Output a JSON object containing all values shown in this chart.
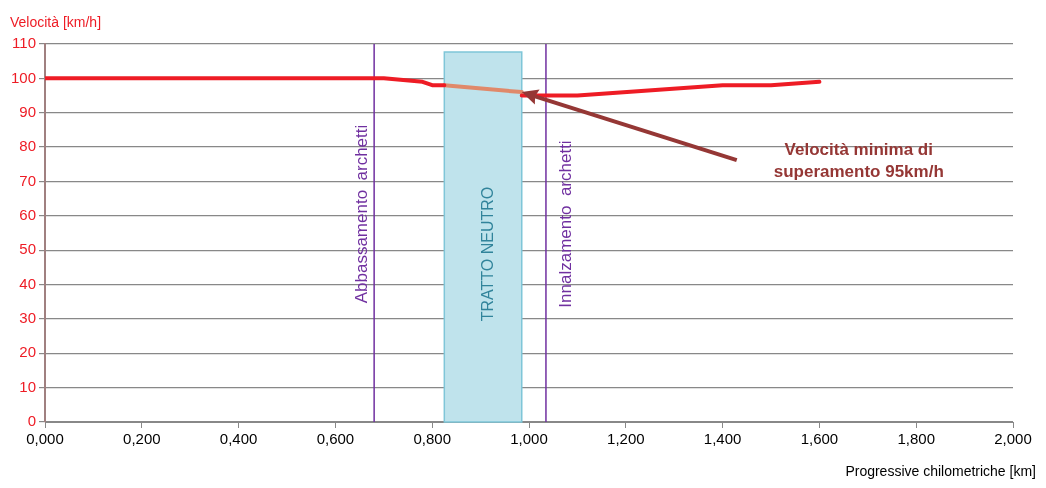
{
  "chart_data": {
    "type": "line",
    "xlabel": "Progressive chilometriche [km]",
    "ylabel": "Velocità [km/h]",
    "series": [
      {
        "color": "#ee1c25",
        "x": [
          0,
          0.7,
          0.78,
          0.8,
          0.825,
          null,
          0.985,
          1.1,
          1.4,
          1.5,
          1.6
        ],
        "values": [
          100,
          100,
          99,
          98,
          98,
          null,
          95,
          95,
          98,
          98,
          99
        ]
      },
      {
        "color": "#e0896a",
        "x": [
          0.825,
          0.985
        ],
        "values": [
          98,
          96
        ]
      }
    ],
    "xlim": [
      0,
      2
    ],
    "xticks": [
      {
        "value": 0,
        "label": "0,000"
      },
      {
        "value": 0.2,
        "label": "0,200"
      },
      {
        "value": 0.4,
        "label": "0,400"
      },
      {
        "value": 0.6,
        "label": "0,600"
      },
      {
        "value": 0.8,
        "label": "0,800"
      },
      {
        "value": 1,
        "label": "1,000"
      },
      {
        "value": 1.2,
        "label": "1,200"
      },
      {
        "value": 1.4,
        "label": "1,400"
      },
      {
        "value": 1.6,
        "label": "1,600"
      },
      {
        "value": 1.8,
        "label": "1,800"
      },
      {
        "value": 2,
        "label": "2,000"
      }
    ],
    "ylim": [
      0,
      110
    ],
    "yticks": [
      0,
      10,
      20,
      30,
      40,
      50,
      60,
      70,
      80,
      90,
      100,
      110
    ],
    "grid": "y",
    "legend": false,
    "marker": "none",
    "line_style": "solid",
    "ref_lines": [
      {
        "axis": "x",
        "value": 0.68,
        "label": "Abbassamento  archetti",
        "color": "#7030a0"
      },
      {
        "axis": "x",
        "value": 1.035,
        "label": "Innalzamento  archetti",
        "color": "#7030a0"
      }
    ],
    "bands": [
      {
        "axis": "x",
        "from": 0.825,
        "to": 0.985,
        "label": "TRATTO NEUTRO",
        "color": "#bfe3ec"
      }
    ],
    "annotations": [
      "Velocità minima di superamento 95km/h"
    ]
  }
}
